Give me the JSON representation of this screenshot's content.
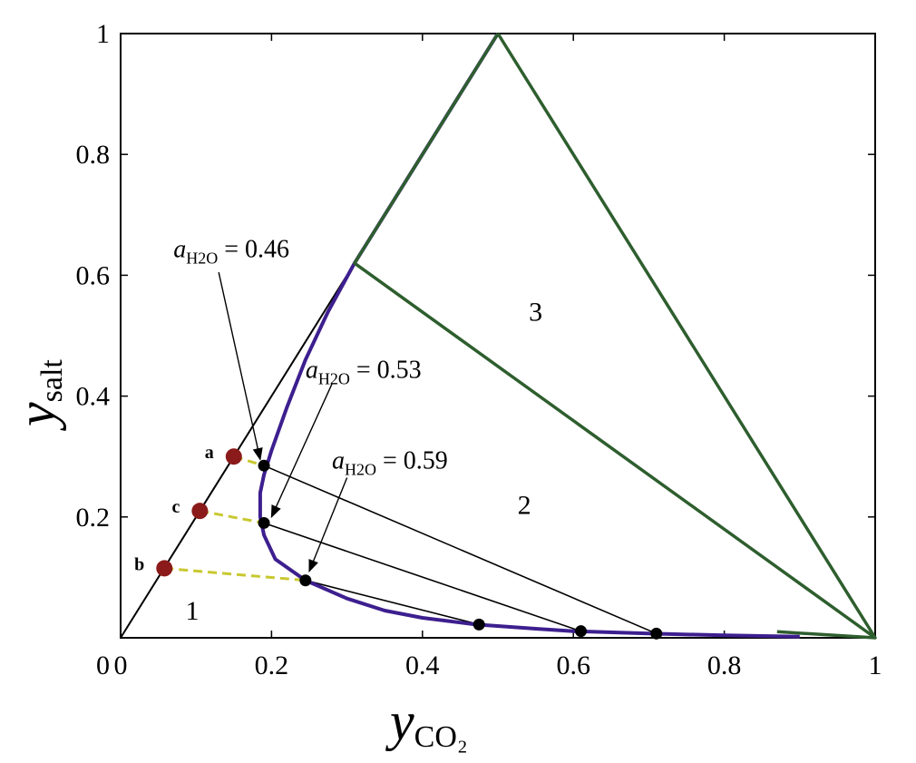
{
  "chart_data": {
    "type": "line",
    "xlabel_main": "y",
    "xlabel_sub": "CO₂",
    "ylabel_main": "y",
    "ylabel_sub": "salt",
    "xlim": [
      0,
      1
    ],
    "ylim": [
      0,
      1
    ],
    "x_ticks": [
      {
        "value": 0,
        "label": "0"
      },
      {
        "value": 0.2,
        "label": "0.2"
      },
      {
        "value": 0.4,
        "label": "0.4"
      },
      {
        "value": 0.6,
        "label": "0.6"
      },
      {
        "value": 0.8,
        "label": "0.8"
      },
      {
        "value": 1,
        "label": "1"
      }
    ],
    "y_ticks": [
      {
        "value": 0.2,
        "label": "0.2"
      },
      {
        "value": 0.4,
        "label": "0.4"
      },
      {
        "value": 0.6,
        "label": "0.6"
      },
      {
        "value": 0.8,
        "label": "0.8"
      },
      {
        "value": 1,
        "label": "1"
      }
    ],
    "colors": {
      "frame": "#000000",
      "triangle": "#2e5e2e",
      "binodal": "#3d1f8f",
      "tie_line": "#000000",
      "tie_extension": "#c8c830",
      "feed_point": "#8b1a1a",
      "tie_point": "#000000"
    },
    "triangle_left_edge": [
      [
        0,
        0
      ],
      [
        0.5,
        1
      ]
    ],
    "triangle_green": [
      [
        0.5,
        1
      ],
      [
        0.31,
        0.62
      ],
      [
        1,
        0
      ],
      [
        0.5,
        1
      ]
    ],
    "triangle_base": [
      [
        0.87,
        0.01
      ],
      [
        1,
        0
      ]
    ],
    "binodal_curve": [
      [
        0.5,
        1
      ],
      [
        0.45,
        0.9
      ],
      [
        0.4,
        0.8
      ],
      [
        0.35,
        0.7
      ],
      [
        0.31,
        0.62
      ],
      [
        0.275,
        0.54
      ],
      [
        0.245,
        0.46
      ],
      [
        0.22,
        0.38
      ],
      [
        0.2,
        0.31
      ],
      [
        0.19,
        0.27
      ],
      [
        0.185,
        0.24
      ],
      [
        0.185,
        0.2
      ],
      [
        0.19,
        0.17
      ],
      [
        0.205,
        0.13
      ],
      [
        0.245,
        0.095
      ],
      [
        0.3,
        0.065
      ],
      [
        0.35,
        0.045
      ],
      [
        0.4,
        0.033
      ],
      [
        0.47,
        0.022
      ],
      [
        0.55,
        0.015
      ],
      [
        0.6,
        0.011
      ],
      [
        0.7,
        0.007
      ],
      [
        0.8,
        0.004
      ],
      [
        0.9,
        0.002
      ]
    ],
    "tie_lines": [
      {
        "from": [
          0.19,
          0.285
        ],
        "to": [
          0.71,
          0.007
        ]
      },
      {
        "from": [
          0.19,
          0.19
        ],
        "to": [
          0.61,
          0.011
        ]
      },
      {
        "from": [
          0.245,
          0.095
        ],
        "to": [
          0.475,
          0.022
        ]
      }
    ],
    "tie_line_extensions": [
      {
        "from": [
          0.15,
          0.3
        ],
        "to": [
          0.19,
          0.285
        ]
      },
      {
        "from": [
          0.105,
          0.21
        ],
        "to": [
          0.19,
          0.19
        ]
      },
      {
        "from": [
          0.058,
          0.115
        ],
        "to": [
          0.245,
          0.095
        ]
      }
    ],
    "tie_points": [
      [
        0.19,
        0.285
      ],
      [
        0.19,
        0.19
      ],
      [
        0.245,
        0.095
      ],
      [
        0.475,
        0.022
      ],
      [
        0.61,
        0.011
      ],
      [
        0.71,
        0.007
      ]
    ],
    "feed_points": [
      {
        "label": "a",
        "x": 0.15,
        "y": 0.3
      },
      {
        "label": "c",
        "x": 0.105,
        "y": 0.21
      },
      {
        "label": "b",
        "x": 0.058,
        "y": 0.115
      }
    ],
    "region_labels": [
      {
        "text": "1",
        "x": 0.095,
        "y": 0.045
      },
      {
        "text": "2",
        "x": 0.535,
        "y": 0.22
      },
      {
        "text": "3",
        "x": 0.55,
        "y": 0.54
      }
    ],
    "annotations": [
      {
        "prefix": "a",
        "sub": "H2O",
        "value": " = 0.46",
        "text_x": 0.07,
        "text_y": 0.63,
        "arrow_from": [
          0.13,
          0.605
        ],
        "arrow_to": [
          0.185,
          0.295
        ]
      },
      {
        "prefix": "a",
        "sub": "H2O",
        "value": " = 0.53",
        "text_x": 0.245,
        "text_y": 0.43,
        "arrow_from": [
          0.28,
          0.42
        ],
        "arrow_to": [
          0.2,
          0.2
        ]
      },
      {
        "prefix": "a",
        "sub": "H2O",
        "value": " = 0.59",
        "text_x": 0.28,
        "text_y": 0.28,
        "arrow_from": [
          0.3,
          0.265
        ],
        "arrow_to": [
          0.25,
          0.11
        ]
      }
    ]
  }
}
